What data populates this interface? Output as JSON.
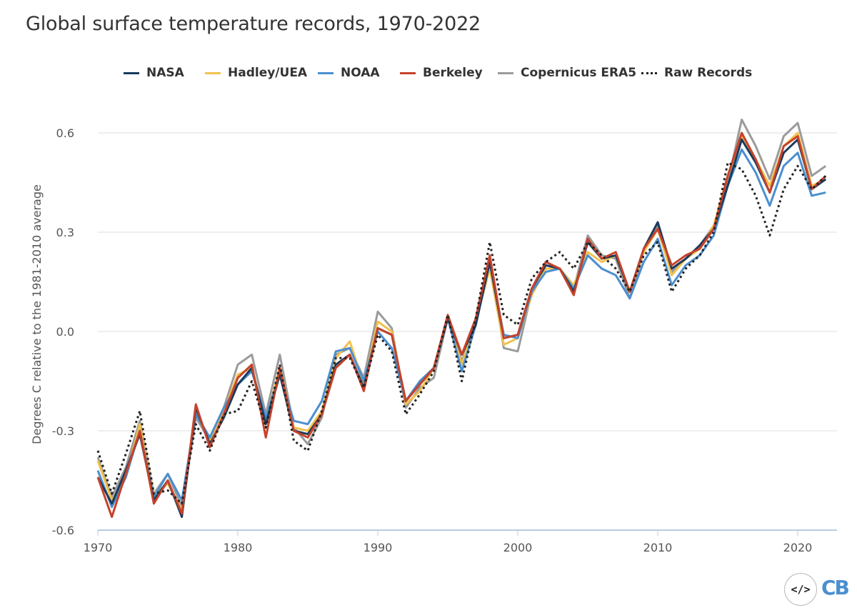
{
  "chart_data": {
    "type": "line",
    "title": "Global surface temperature records, 1970-2022",
    "xlabel": "",
    "ylabel": "Degrees C relative to the 1981-2010 average",
    "xlim": [
      1970,
      2022
    ],
    "ylim": [
      -0.6,
      0.65
    ],
    "x_ticks": [
      1970,
      1980,
      1990,
      2000,
      2010,
      2020
    ],
    "x_tick_labels": [
      "1970",
      "1980",
      "1990",
      "2000",
      "2010",
      "2020"
    ],
    "y_ticks": [
      -0.6,
      -0.3,
      0.0,
      0.3,
      0.6
    ],
    "y_tick_labels": [
      "-0.6",
      "-0.3",
      "0.0",
      "0.3",
      "0.6"
    ],
    "grid": true,
    "legend_position": "top",
    "x": [
      1970,
      1971,
      1972,
      1973,
      1974,
      1975,
      1976,
      1977,
      1978,
      1979,
      1980,
      1981,
      1982,
      1983,
      1984,
      1985,
      1986,
      1987,
      1988,
      1989,
      1990,
      1991,
      1992,
      1993,
      1994,
      1995,
      1996,
      1997,
      1998,
      1999,
      2000,
      2001,
      2002,
      2003,
      2004,
      2005,
      2006,
      2007,
      2008,
      2009,
      2010,
      2011,
      2012,
      2013,
      2014,
      2015,
      2016,
      2017,
      2018,
      2019,
      2020,
      2021,
      2022
    ],
    "series": [
      {
        "name": "NASA",
        "color": "#1b3a5c",
        "dash": "solid",
        "values": [
          -0.44,
          -0.52,
          -0.42,
          -0.31,
          -0.51,
          -0.45,
          -0.56,
          -0.23,
          -0.34,
          -0.26,
          -0.16,
          -0.11,
          -0.28,
          -0.13,
          -0.3,
          -0.31,
          -0.25,
          -0.1,
          -0.07,
          -0.17,
          0.01,
          -0.01,
          -0.21,
          -0.16,
          -0.11,
          0.04,
          -0.07,
          0.02,
          0.21,
          -0.02,
          -0.01,
          0.13,
          0.2,
          0.19,
          0.12,
          0.27,
          0.22,
          0.23,
          0.12,
          0.25,
          0.33,
          0.19,
          0.22,
          0.26,
          0.31,
          0.44,
          0.58,
          0.51,
          0.42,
          0.54,
          0.58,
          0.43,
          0.46
        ]
      },
      {
        "name": "Hadley/UEA",
        "color": "#f2c14e",
        "dash": "solid",
        "values": [
          -0.39,
          -0.51,
          -0.44,
          -0.28,
          -0.49,
          -0.46,
          -0.54,
          -0.24,
          -0.33,
          -0.24,
          -0.13,
          -0.11,
          -0.27,
          -0.11,
          -0.29,
          -0.3,
          -0.24,
          -0.08,
          -0.03,
          -0.16,
          0.03,
          0.0,
          -0.22,
          -0.18,
          -0.11,
          0.04,
          -0.1,
          0.03,
          0.19,
          -0.04,
          -0.02,
          0.11,
          0.19,
          0.19,
          0.14,
          0.24,
          0.21,
          0.23,
          0.12,
          0.24,
          0.31,
          0.17,
          0.22,
          0.25,
          0.32,
          0.47,
          0.59,
          0.52,
          0.44,
          0.56,
          0.6,
          0.44,
          0.46
        ]
      },
      {
        "name": "NOAA",
        "color": "#4b8fcf",
        "dash": "solid",
        "values": [
          -0.42,
          -0.53,
          -0.44,
          -0.3,
          -0.5,
          -0.43,
          -0.51,
          -0.25,
          -0.32,
          -0.23,
          -0.16,
          -0.12,
          -0.26,
          -0.13,
          -0.27,
          -0.28,
          -0.21,
          -0.06,
          -0.05,
          -0.15,
          0.0,
          -0.05,
          -0.21,
          -0.15,
          -0.11,
          0.04,
          -0.12,
          0.02,
          0.21,
          -0.01,
          -0.02,
          0.12,
          0.18,
          0.19,
          0.13,
          0.23,
          0.19,
          0.17,
          0.1,
          0.21,
          0.28,
          0.14,
          0.2,
          0.23,
          0.29,
          0.44,
          0.55,
          0.48,
          0.38,
          0.5,
          0.54,
          0.41,
          0.42
        ]
      },
      {
        "name": "Berkeley",
        "color": "#c6422b",
        "dash": "solid",
        "values": [
          -0.44,
          -0.56,
          -0.43,
          -0.3,
          -0.52,
          -0.45,
          -0.55,
          -0.22,
          -0.35,
          -0.25,
          -0.14,
          -0.1,
          -0.32,
          -0.11,
          -0.3,
          -0.32,
          -0.25,
          -0.11,
          -0.07,
          -0.18,
          0.01,
          -0.01,
          -0.21,
          -0.16,
          -0.11,
          0.05,
          -0.07,
          0.04,
          0.23,
          -0.02,
          -0.01,
          0.13,
          0.21,
          0.19,
          0.11,
          0.28,
          0.22,
          0.24,
          0.12,
          0.25,
          0.31,
          0.2,
          0.23,
          0.25,
          0.31,
          0.47,
          0.6,
          0.52,
          0.42,
          0.56,
          0.59,
          0.43,
          0.47
        ]
      },
      {
        "name": "Copernicus ERA5",
        "color": "#9b9b9b",
        "dash": "solid",
        "values": [
          -0.38,
          -0.5,
          -0.41,
          -0.27,
          -0.49,
          -0.43,
          -0.53,
          -0.26,
          -0.33,
          -0.23,
          -0.1,
          -0.07,
          -0.25,
          -0.07,
          -0.29,
          -0.34,
          -0.26,
          -0.07,
          -0.05,
          -0.14,
          0.06,
          0.01,
          -0.23,
          -0.17,
          -0.14,
          0.04,
          -0.09,
          0.03,
          0.22,
          -0.05,
          -0.06,
          0.12,
          0.21,
          0.19,
          0.13,
          0.29,
          0.23,
          0.22,
          0.1,
          0.24,
          0.32,
          0.18,
          0.22,
          0.26,
          0.32,
          0.45,
          0.64,
          0.56,
          0.46,
          0.59,
          0.63,
          0.47,
          0.5
        ]
      },
      {
        "name": "Raw Records",
        "color": "#222222",
        "dash": "dotted",
        "values": [
          -0.36,
          -0.49,
          -0.37,
          -0.24,
          -0.49,
          -0.48,
          -0.52,
          -0.28,
          -0.36,
          -0.25,
          -0.24,
          -0.15,
          -0.29,
          -0.1,
          -0.33,
          -0.36,
          -0.24,
          -0.08,
          -0.08,
          -0.17,
          -0.01,
          -0.06,
          -0.25,
          -0.19,
          -0.12,
          0.05,
          -0.15,
          0.04,
          0.27,
          0.05,
          0.02,
          0.16,
          0.21,
          0.24,
          0.19,
          0.27,
          0.23,
          0.19,
          0.12,
          0.23,
          0.27,
          0.12,
          0.19,
          0.23,
          0.3,
          0.51,
          0.49,
          0.41,
          0.29,
          0.43,
          0.5,
          0.43,
          0.47
        ]
      }
    ]
  },
  "logo": {
    "embed_glyph": "</>",
    "brand_text": "CB"
  }
}
